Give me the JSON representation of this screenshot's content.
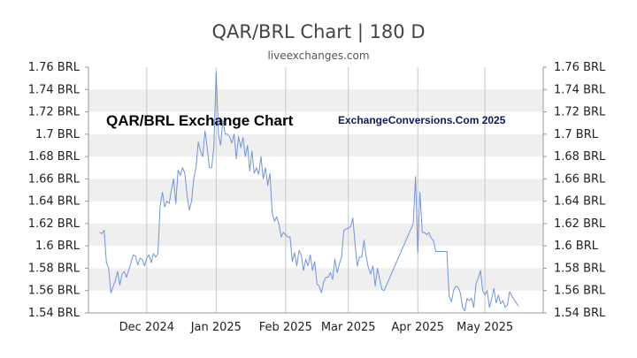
{
  "title": "QAR/BRL Chart | 180 D",
  "subtitle": "liveexchanges.com",
  "watermark_left": "QAR/BRL Exchange Chart",
  "watermark_right": "ExchangeConversions.Com 2025",
  "colors": {
    "line": "#6f94e0",
    "band": "#efefef",
    "grid": "#c8c8c8",
    "axis": "#999999"
  },
  "chart_data": {
    "type": "line",
    "title": "QAR/BRL Chart | 180 D",
    "xlabel": "",
    "ylabel": "",
    "ylim": [
      1.54,
      1.76
    ],
    "y_ticks": [
      1.54,
      1.56,
      1.58,
      1.6,
      1.62,
      1.64,
      1.66,
      1.68,
      1.7,
      1.72,
      1.74,
      1.76
    ],
    "y_tick_labels": [
      "1.54 BRL",
      "1.56 BRL",
      "1.58 BRL",
      "1.6 BRL",
      "1.62 BRL",
      "1.64 BRL",
      "1.66 BRL",
      "1.68 BRL",
      "1.7 BRL",
      "1.72 BRL",
      "1.74 BRL",
      "1.76 BRL"
    ],
    "x_ticks": [
      {
        "date": "2024-12-01",
        "label": "Dec 2024"
      },
      {
        "date": "2025-01-01",
        "label": "Jan 2025"
      },
      {
        "date": "2025-02-01",
        "label": "Feb 2025"
      },
      {
        "date": "2025-03-01",
        "label": "Mar 2025"
      },
      {
        "date": "2025-04-01",
        "label": "Apr 2025"
      },
      {
        "date": "2025-05-01",
        "label": "May 2025"
      }
    ],
    "xlim": [
      "2024-11-05",
      "2025-05-27"
    ],
    "grid": true,
    "series": [
      {
        "values": [
          [
            "2024-11-10",
            1.612
          ],
          [
            "2024-11-11",
            1.611
          ],
          [
            "2024-11-12",
            1.614
          ],
          [
            "2024-11-13",
            1.585
          ],
          [
            "2024-11-14",
            1.58
          ],
          [
            "2024-11-15",
            1.558
          ],
          [
            "2024-11-17",
            1.569
          ],
          [
            "2024-11-18",
            1.577
          ],
          [
            "2024-11-19",
            1.565
          ],
          [
            "2024-11-20",
            1.575
          ],
          [
            "2024-11-21",
            1.577
          ],
          [
            "2024-11-22",
            1.572
          ],
          [
            "2024-11-24",
            1.585
          ],
          [
            "2024-11-25",
            1.592
          ],
          [
            "2024-11-26",
            1.591
          ],
          [
            "2024-11-27",
            1.583
          ],
          [
            "2024-11-28",
            1.589
          ],
          [
            "2024-11-29",
            1.588
          ],
          [
            "2024-11-30",
            1.582
          ],
          [
            "2024-12-01",
            1.589
          ],
          [
            "2024-12-02",
            1.592
          ],
          [
            "2024-12-03",
            1.585
          ],
          [
            "2024-12-04",
            1.593
          ],
          [
            "2024-12-05",
            1.59
          ],
          [
            "2024-12-06",
            1.593
          ],
          [
            "2024-12-07",
            1.636
          ],
          [
            "2024-12-08",
            1.648
          ],
          [
            "2024-12-09",
            1.635
          ],
          [
            "2024-12-10",
            1.64
          ],
          [
            "2024-12-11",
            1.638
          ],
          [
            "2024-12-12",
            1.65
          ],
          [
            "2024-12-13",
            1.66
          ],
          [
            "2024-12-14",
            1.638
          ],
          [
            "2024-12-15",
            1.668
          ],
          [
            "2024-12-16",
            1.663
          ],
          [
            "2024-12-17",
            1.67
          ],
          [
            "2024-12-18",
            1.665
          ],
          [
            "2024-12-19",
            1.646
          ],
          [
            "2024-12-20",
            1.632
          ],
          [
            "2024-12-21",
            1.64
          ],
          [
            "2024-12-22",
            1.66
          ],
          [
            "2024-12-23",
            1.67
          ],
          [
            "2024-12-24",
            1.693
          ],
          [
            "2024-12-25",
            1.685
          ],
          [
            "2024-12-26",
            1.68
          ],
          [
            "2024-12-27",
            1.703
          ],
          [
            "2024-12-28",
            1.688
          ],
          [
            "2024-12-29",
            1.67
          ],
          [
            "2024-12-30",
            1.67
          ],
          [
            "2024-12-31",
            1.69
          ],
          [
            "2025-01-01",
            1.756
          ],
          [
            "2025-01-02",
            1.7
          ],
          [
            "2025-01-03",
            1.69
          ],
          [
            "2025-01-04",
            1.713
          ],
          [
            "2025-01-05",
            1.7
          ],
          [
            "2025-01-06",
            1.7
          ],
          [
            "2025-01-07",
            1.698
          ],
          [
            "2025-01-08",
            1.692
          ],
          [
            "2025-01-09",
            1.7
          ],
          [
            "2025-01-10",
            1.678
          ],
          [
            "2025-01-11",
            1.698
          ],
          [
            "2025-01-12",
            1.688
          ],
          [
            "2025-01-13",
            1.697
          ],
          [
            "2025-01-14",
            1.68
          ],
          [
            "2025-01-15",
            1.69
          ],
          [
            "2025-01-16",
            1.667
          ],
          [
            "2025-01-17",
            1.685
          ],
          [
            "2025-01-18",
            1.665
          ],
          [
            "2025-01-19",
            1.67
          ],
          [
            "2025-01-20",
            1.664
          ],
          [
            "2025-01-21",
            1.68
          ],
          [
            "2025-01-22",
            1.66
          ],
          [
            "2025-01-23",
            1.67
          ],
          [
            "2025-01-24",
            1.654
          ],
          [
            "2025-01-25",
            1.665
          ],
          [
            "2025-01-26",
            1.63
          ],
          [
            "2025-01-27",
            1.622
          ],
          [
            "2025-01-28",
            1.626
          ],
          [
            "2025-01-29",
            1.62
          ],
          [
            "2025-01-30",
            1.608
          ],
          [
            "2025-01-31",
            1.612
          ],
          [
            "2025-02-02",
            1.608
          ],
          [
            "2025-02-03",
            1.608
          ],
          [
            "2025-02-04",
            1.586
          ],
          [
            "2025-02-05",
            1.594
          ],
          [
            "2025-02-06",
            1.582
          ],
          [
            "2025-02-07",
            1.596
          ],
          [
            "2025-02-08",
            1.592
          ],
          [
            "2025-02-09",
            1.578
          ],
          [
            "2025-02-10",
            1.588
          ],
          [
            "2025-02-11",
            1.582
          ],
          [
            "2025-02-12",
            1.592
          ],
          [
            "2025-02-13",
            1.578
          ],
          [
            "2025-02-14",
            1.586
          ],
          [
            "2025-02-15",
            1.566
          ],
          [
            "2025-02-16",
            1.564
          ],
          [
            "2025-02-17",
            1.558
          ],
          [
            "2025-02-18",
            1.568
          ],
          [
            "2025-02-19",
            1.572
          ],
          [
            "2025-02-20",
            1.572
          ],
          [
            "2025-02-21",
            1.576
          ],
          [
            "2025-02-22",
            1.57
          ],
          [
            "2025-02-23",
            1.588
          ],
          [
            "2025-02-24",
            1.576
          ],
          [
            "2025-02-25",
            1.584
          ],
          [
            "2025-02-26",
            1.59
          ],
          [
            "2025-02-27",
            1.614
          ],
          [
            "2025-02-28",
            1.615
          ],
          [
            "2025-03-01",
            1.616
          ],
          [
            "2025-03-02",
            1.617
          ],
          [
            "2025-03-03",
            1.625
          ],
          [
            "2025-03-04",
            1.602
          ],
          [
            "2025-03-05",
            1.582
          ],
          [
            "2025-03-06",
            1.59
          ],
          [
            "2025-03-07",
            1.59
          ],
          [
            "2025-03-08",
            1.605
          ],
          [
            "2025-03-09",
            1.59
          ],
          [
            "2025-03-10",
            1.58
          ],
          [
            "2025-03-11",
            1.575
          ],
          [
            "2025-03-12",
            1.582
          ],
          [
            "2025-03-13",
            1.564
          ],
          [
            "2025-03-14",
            1.58
          ],
          [
            "2025-03-15",
            1.57
          ],
          [
            "2025-03-16",
            1.561
          ],
          [
            "2025-03-17",
            1.56
          ],
          [
            "2025-03-30",
            1.62
          ],
          [
            "2025-03-31",
            1.662
          ],
          [
            "2025-04-01",
            1.594
          ],
          [
            "2025-04-02",
            1.648
          ],
          [
            "2025-04-03",
            1.612
          ],
          [
            "2025-04-04",
            1.612
          ],
          [
            "2025-04-05",
            1.61
          ],
          [
            "2025-04-06",
            1.612
          ],
          [
            "2025-04-07",
            1.607
          ],
          [
            "2025-04-08",
            1.605
          ],
          [
            "2025-04-09",
            1.595
          ],
          [
            "2025-04-14",
            1.595
          ],
          [
            "2025-04-15",
            1.555
          ],
          [
            "2025-04-16",
            1.55
          ],
          [
            "2025-04-17",
            1.56
          ],
          [
            "2025-04-18",
            1.564
          ],
          [
            "2025-04-19",
            1.563
          ],
          [
            "2025-04-20",
            1.558
          ],
          [
            "2025-04-21",
            1.545
          ],
          [
            "2025-04-22",
            1.542
          ],
          [
            "2025-04-23",
            1.553
          ],
          [
            "2025-04-24",
            1.551
          ],
          [
            "2025-04-25",
            1.553
          ],
          [
            "2025-04-26",
            1.545
          ],
          [
            "2025-04-27",
            1.566
          ],
          [
            "2025-04-28",
            1.571
          ],
          [
            "2025-04-29",
            1.578
          ],
          [
            "2025-04-30",
            1.56
          ],
          [
            "2025-05-01",
            1.556
          ],
          [
            "2025-05-02",
            1.56
          ],
          [
            "2025-05-03",
            1.545
          ],
          [
            "2025-05-04",
            1.553
          ],
          [
            "2025-05-05",
            1.562
          ],
          [
            "2025-05-06",
            1.549
          ],
          [
            "2025-05-07",
            1.556
          ],
          [
            "2025-05-08",
            1.548
          ],
          [
            "2025-05-09",
            1.551
          ],
          [
            "2025-05-10",
            1.545
          ],
          [
            "2025-05-11",
            1.547
          ],
          [
            "2025-05-12",
            1.559
          ],
          [
            "2025-05-13",
            1.555
          ],
          [
            "2025-05-14",
            1.552
          ],
          [
            "2025-05-15",
            1.549
          ],
          [
            "2025-05-16",
            1.546
          ]
        ]
      }
    ]
  }
}
